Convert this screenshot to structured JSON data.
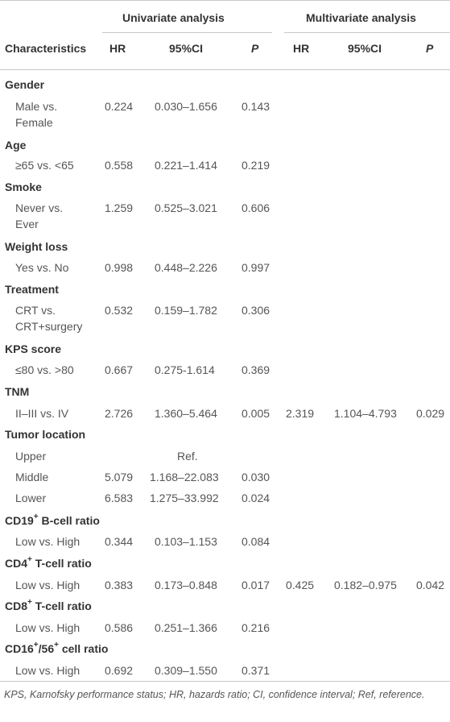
{
  "header": {
    "group_univariate": "Univariate analysis",
    "group_multivariate": "Multivariate analysis",
    "characteristics": "Characteristics",
    "hr": "HR",
    "ci": "95%CI",
    "p": "P"
  },
  "groups": [
    {
      "title": "Gender",
      "rows": [
        {
          "label1": "Male vs.",
          "label2": "Female",
          "hr": "0.224",
          "ci": "0.030–1.656",
          "p": "0.143"
        }
      ]
    },
    {
      "title": "Age",
      "rows": [
        {
          "label1": "≥65 vs. <65",
          "hr": "0.558",
          "ci": "0.221–1.414",
          "p": "0.219"
        }
      ]
    },
    {
      "title": "Smoke",
      "rows": [
        {
          "label1": "Never vs.",
          "label2": "Ever",
          "hr": "1.259",
          "ci": "0.525–3.021",
          "p": "0.606"
        }
      ]
    },
    {
      "title": "Weight loss",
      "rows": [
        {
          "label1": "Yes vs. No",
          "hr": "0.998",
          "ci": "0.448–2.226",
          "p": "0.997"
        }
      ]
    },
    {
      "title": "Treatment",
      "rows": [
        {
          "label1": "CRT vs.",
          "label2": "CRT+surgery",
          "hr": "0.532",
          "ci": "0.159–1.782",
          "p": "0.306"
        }
      ]
    },
    {
      "title": "KPS score",
      "rows": [
        {
          "label1": "≤80 vs. >80",
          "hr": "0.667",
          "ci": "0.275-1.614",
          "p": "0.369"
        }
      ]
    },
    {
      "title": "TNM",
      "rows": [
        {
          "label1": "II–III vs. IV",
          "hr": "2.726",
          "ci": "1.360–5.464",
          "p": "0.005",
          "mhr": "2.319",
          "mci": "1.104–4.793",
          "mp": "0.029"
        }
      ]
    },
    {
      "title": "Tumor location",
      "rows": [
        {
          "label1": "Upper",
          "ci": "Ref."
        },
        {
          "label1": "Middle",
          "hr": "5.079",
          "ci": "1.168–22.083",
          "p": "0.030"
        },
        {
          "label1": "Lower",
          "hr": "6.583",
          "ci": "1.275–33.992",
          "p": "0.024"
        }
      ]
    },
    {
      "title_a": "CD19",
      "title_sup": "+",
      "title_b": " B-cell ratio",
      "rows": [
        {
          "label1": "Low vs. High",
          "hr": "0.344",
          "ci": "0.103–1.153",
          "p": "0.084"
        }
      ]
    },
    {
      "title_a": "CD4",
      "title_sup": "+",
      "title_b": " T-cell ratio",
      "rows": [
        {
          "label1": "Low vs. High",
          "hr": "0.383",
          "ci": "0.173–0.848",
          "p": "0.017",
          "mhr": "0.425",
          "mci": "0.182–0.975",
          "mp": "0.042"
        }
      ]
    },
    {
      "title_a": "CD8",
      "title_sup": "+",
      "title_b": " T-cell ratio",
      "rows": [
        {
          "label1": "Low vs. High",
          "hr": "0.586",
          "ci": "0.251–1.366",
          "p": "0.216"
        }
      ]
    },
    {
      "title_a": "CD16",
      "title_sup": "+",
      "title_mid": "/56",
      "title_sup2": "+",
      "title_b": " cell ratio",
      "rows": [
        {
          "label1": "Low vs. High",
          "hr": "0.692",
          "ci": "0.309–1.550",
          "p": "0.371"
        }
      ]
    }
  ],
  "footnote": "KPS, Karnofsky performance status; HR, hazards ratio; CI, confidence interval; Ref, reference."
}
